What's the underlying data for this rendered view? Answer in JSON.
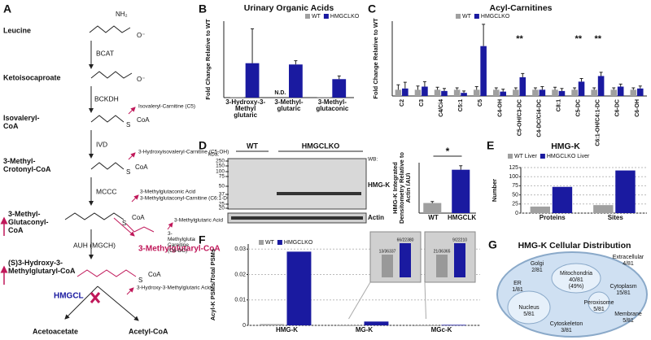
{
  "panel_labels": [
    "A",
    "B",
    "C",
    "D",
    "E",
    "F",
    "G"
  ],
  "pathway": {
    "compounds": [
      "Leucine",
      "Ketoisocaproate",
      "Isovaleryl-CoA",
      "3-Methyl-Crotonyl-CoA",
      "3-Methyl-Glutaconyl-CoA",
      "(S)3-Hydroxy-3-Methylglutaryl-CoA",
      "Acetoacetate",
      "Acetyl-CoA",
      "3-Methylglutaryl-CoA"
    ],
    "enzymes": [
      "BCAT",
      "BCKDH",
      "IVD",
      "MCCC",
      "AUH (MGCH)",
      "HMGCL"
    ],
    "side_products": [
      "Isovaleryl-Carnitine (C5)",
      "3-Hydroxyisovaleryl-Carnitine (C5-OH)",
      "3-Methylglutaconic Acid",
      "3-Methylglutaconyl-Carnitine (C6:1-DC)",
      "3-Methylglutaric Acid",
      "3-Methylglutaryl-Carnitine (C6-DC)",
      "3-Hydroxy-3-Methylglutaric Acid"
    ],
    "groups": [
      "NH₂",
      "O⁻",
      "S",
      "CoA"
    ]
  },
  "chart_data": [
    {
      "type": "bar",
      "title": "Urinary Organic Acids",
      "ylabel": "Fold Change Relative to WT",
      "categories": [
        "3-Hydroxy-3-Methyl glutaric",
        "3-Methyl-glutaric",
        "3-Methyl-glutaconic"
      ],
      "series": [
        {
          "name": "WT",
          "color": "#a0a0a0",
          "values": [
            5,
            null,
            5
          ]
        },
        {
          "name": "HMGCLKO",
          "color": "#1a1aa0",
          "values": [
            270,
            260,
            145
          ],
          "errors": [
            270,
            30,
            25
          ]
        }
      ],
      "ylim": [
        0,
        600
      ],
      "annotations": [
        "N.D."
      ]
    },
    {
      "type": "bar",
      "title": "Acyl-Carnitines",
      "ylabel": "Fold Change Relative to WT",
      "categories": [
        "C2",
        "C3",
        "C4/Ci4",
        "C5:1",
        "C5",
        "C4-OH",
        "C5-OH/C3-DC",
        "C4-DC/Ci4-DC",
        "C8:1",
        "C5-DC",
        "C6:1-OH/C4:1-DC",
        "C6-DC",
        "C6-OH"
      ],
      "series": [
        {
          "name": "WT",
          "color": "#a0a0a0",
          "values": [
            1,
            1,
            1,
            1,
            1,
            1,
            1,
            1,
            1,
            1,
            1,
            1,
            1
          ],
          "errors": [
            0.8,
            0.6,
            0.4,
            0.3,
            0.5,
            0.3,
            0.3,
            0.3,
            0.4,
            0.3,
            0.3,
            0.3,
            0.3
          ]
        },
        {
          "name": "HMGCLKO",
          "color": "#1a1aa0",
          "values": [
            1.2,
            1.5,
            0.8,
            0.5,
            8,
            0.7,
            3,
            1,
            0.8,
            2.3,
            3.2,
            1.5,
            1.2
          ],
          "errors": [
            1,
            0.8,
            0.4,
            0.3,
            3.5,
            0.4,
            0.6,
            0.5,
            0.4,
            0.5,
            0.6,
            0.4,
            0.4
          ]
        }
      ],
      "ylim": [
        0,
        12
      ],
      "annotations": [
        "**",
        "**",
        "**"
      ]
    },
    {
      "type": "bar",
      "ylabel": "HMG-K Integrated Densitometry Relative to Actin (AU)",
      "categories": [
        "WT",
        "HMGCLKO"
      ],
      "values": [
        1,
        4.3
      ],
      "errors": [
        0.15,
        0.4
      ],
      "colors": [
        "#a0a0a0",
        "#1a1aa0"
      ],
      "ylim": [
        0,
        5
      ],
      "annotations": [
        "*"
      ]
    },
    {
      "type": "bar",
      "title": "HMG-K",
      "ylabel": "Number",
      "categories": [
        "Proteins",
        "Sites"
      ],
      "series": [
        {
          "name": "WT Liver",
          "color": "#a0a0a0",
          "values": [
            18,
            22
          ]
        },
        {
          "name": "HMGCLKO Liver",
          "color": "#1a1aa0",
          "values": [
            72,
            117
          ]
        }
      ],
      "ylim": [
        0,
        125
      ],
      "yticks": [
        0,
        25,
        50,
        75,
        100,
        125
      ],
      "grid": true
    },
    {
      "type": "bar",
      "ylabel": "Acyl-K PSMs/Total PSMs",
      "categories": [
        "HMG-K",
        "MG-K",
        "MGc-K"
      ],
      "series": [
        {
          "name": "WT",
          "color": "#a0a0a0",
          "values": [
            0.0005,
            0,
            0
          ]
        },
        {
          "name": "HMGCLKO",
          "color": "#1a1aa0",
          "values": [
            0.029,
            0.0015,
            0.0002
          ]
        }
      ],
      "ylim": [
        0,
        0.032
      ],
      "yticks": [
        0,
        0.01,
        0.02,
        0.03
      ],
      "grid": true,
      "inset_labels": [
        "13/36337",
        "66/22380",
        "21/36365",
        "9/22210"
      ]
    }
  ],
  "blot": {
    "kda_label": "kDa:",
    "markers": [
      250,
      150,
      100,
      75,
      50,
      37,
      25,
      20
    ],
    "groups": [
      "WT",
      "HMGCLKO"
    ],
    "wb_label": "WB:",
    "bands": [
      "HMG-K",
      "Actin"
    ]
  },
  "distribution": {
    "title": "HMG-K Cellular Distribution",
    "compartments": [
      {
        "name": "Golgi",
        "count": "2/81"
      },
      {
        "name": "ER",
        "count": "1/81"
      },
      {
        "name": "Mitochondria",
        "count": "40/81",
        "percent": "(49%)"
      },
      {
        "name": "Extracellular",
        "count": "4/81"
      },
      {
        "name": "Cytoplasm",
        "count": "15/81"
      },
      {
        "name": "Nucleus",
        "count": "5/81"
      },
      {
        "name": "Peroxisome",
        "count": "5/81"
      },
      {
        "name": "Membrane",
        "count": "5/81"
      },
      {
        "name": "Cytoskeleton",
        "count": "3/81"
      }
    ]
  }
}
